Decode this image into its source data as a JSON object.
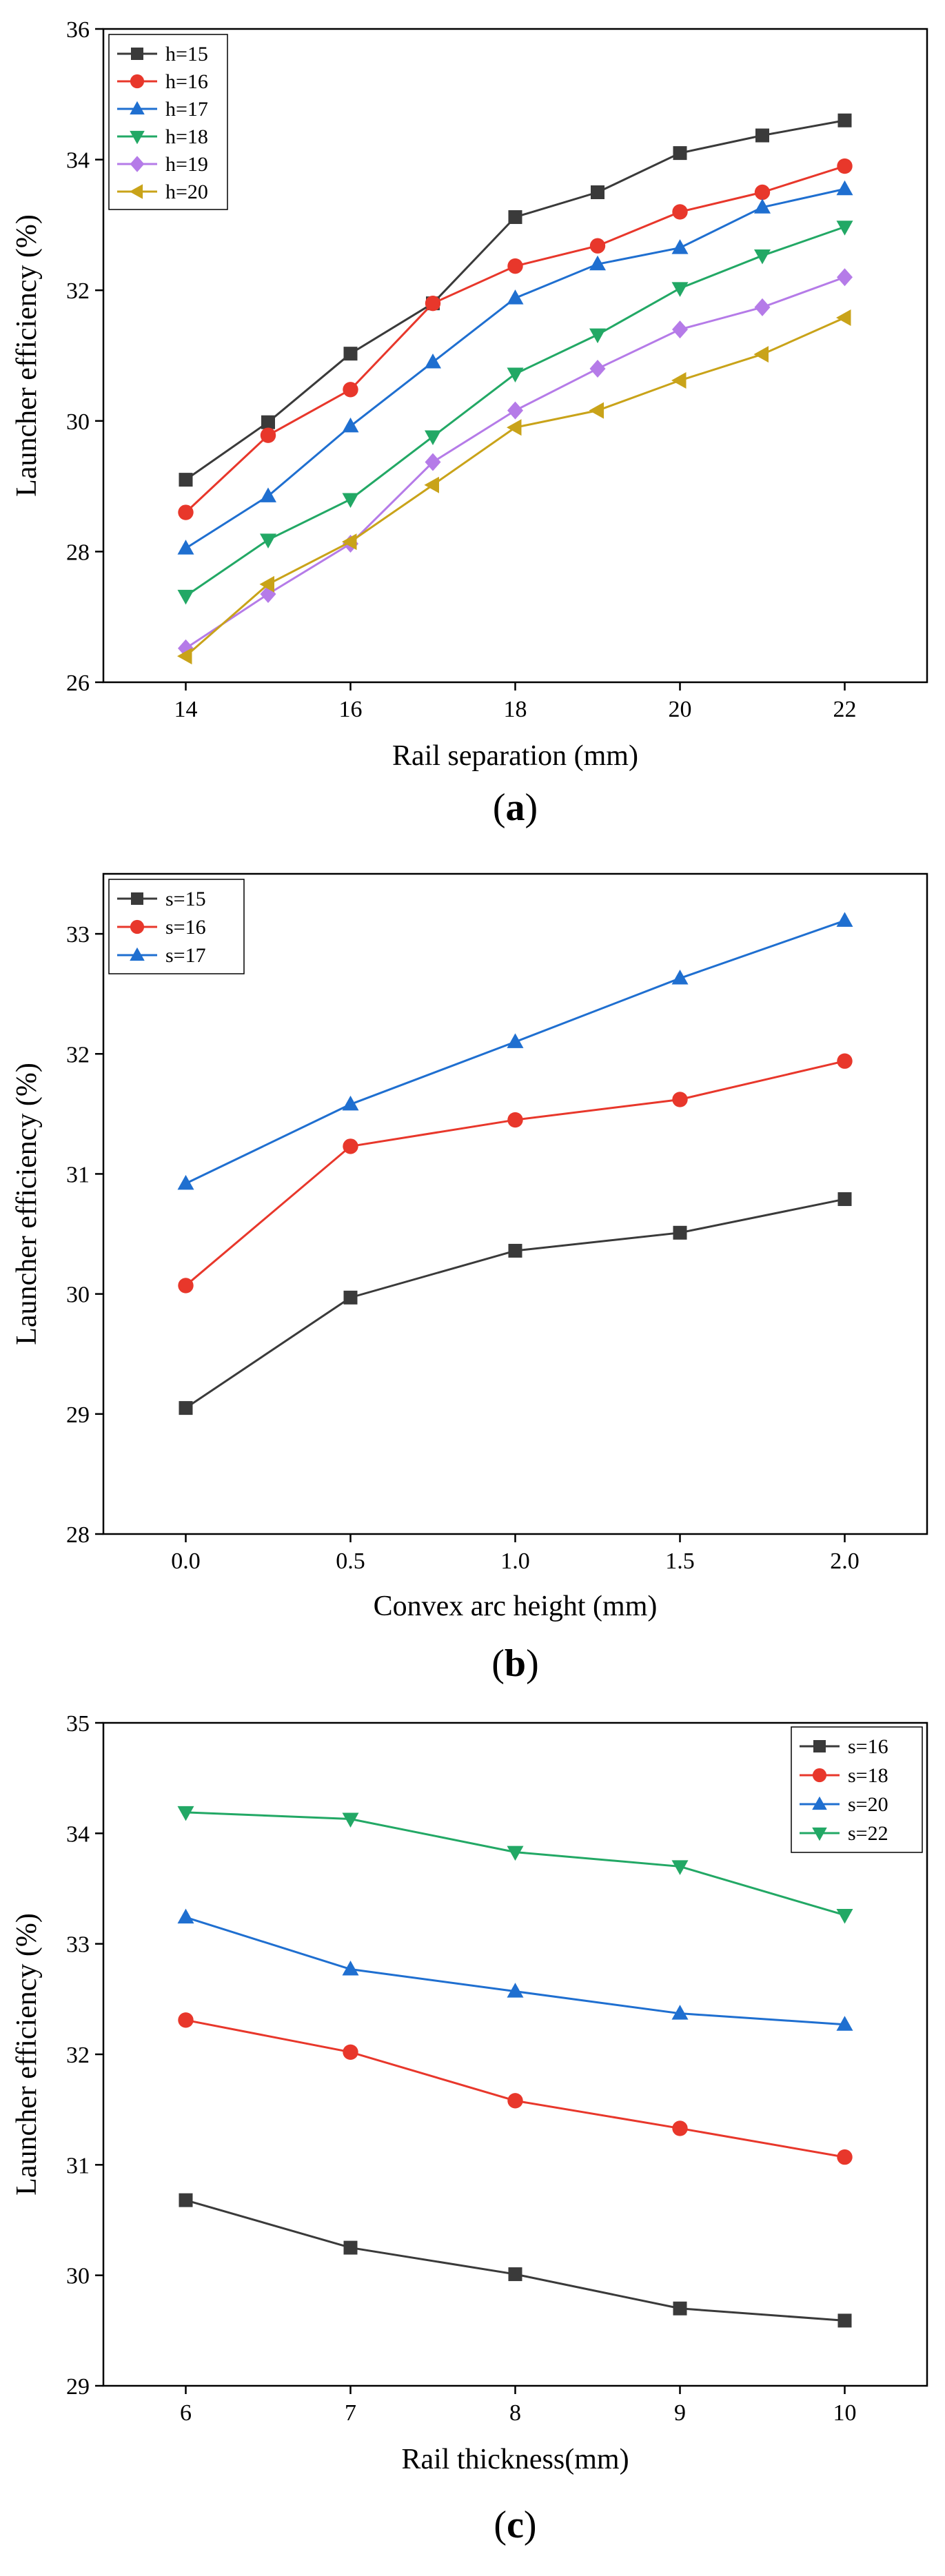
{
  "chart_data": [
    {
      "type": "line",
      "panel_label": "a",
      "title": "",
      "xlabel": "Rail separation (mm)",
      "ylabel": "Launcher efficiency (%)",
      "xlim": [
        13,
        23
      ],
      "ylim": [
        26,
        36
      ],
      "xticks": [
        14,
        16,
        18,
        20,
        22
      ],
      "yticks": [
        26,
        28,
        30,
        32,
        34,
        36
      ],
      "legend_position": "top-left",
      "x": [
        14,
        15,
        16,
        17,
        18,
        19,
        20,
        21,
        22
      ],
      "series": [
        {
          "name": "h=15",
          "color": "#3a3a3a",
          "marker": "square",
          "values": [
            29.1,
            29.98,
            31.03,
            31.8,
            33.12,
            33.5,
            34.1,
            34.37,
            34.6
          ]
        },
        {
          "name": "h=16",
          "color": "#e8372b",
          "marker": "circle",
          "values": [
            28.6,
            29.78,
            30.48,
            31.8,
            32.37,
            32.68,
            33.2,
            33.5,
            33.9
          ]
        },
        {
          "name": "h=17",
          "color": "#1f6fd0",
          "marker": "triangle-up",
          "values": [
            28.05,
            28.85,
            29.92,
            30.9,
            31.88,
            32.4,
            32.65,
            33.27,
            33.55
          ]
        },
        {
          "name": "h=18",
          "color": "#22a865",
          "marker": "triangle-down",
          "values": [
            27.32,
            28.18,
            28.8,
            29.76,
            30.72,
            31.32,
            32.03,
            32.53,
            32.97
          ]
        },
        {
          "name": "h=19",
          "color": "#b57be8",
          "marker": "diamond",
          "values": [
            26.52,
            27.35,
            28.12,
            29.37,
            30.16,
            30.8,
            31.4,
            31.74,
            32.2
          ]
        },
        {
          "name": "h=20",
          "color": "#c9a319",
          "marker": "triangle-left",
          "values": [
            26.4,
            27.5,
            28.15,
            29.02,
            29.9,
            30.16,
            30.62,
            31.02,
            31.58
          ]
        }
      ]
    },
    {
      "type": "line",
      "panel_label": "b",
      "title": "",
      "xlabel": "Convex arc height (mm)",
      "ylabel": "Launcher efficiency (%)",
      "xlim": [
        -0.25,
        2.25
      ],
      "ylim": [
        28,
        33.5
      ],
      "xticks": [
        0.0,
        0.5,
        1.0,
        1.5,
        2.0
      ],
      "xtick_labels": [
        "0.0",
        "0.5",
        "1.0",
        "1.5",
        "2.0"
      ],
      "yticks": [
        28,
        29,
        30,
        31,
        32,
        33
      ],
      "legend_position": "top-left",
      "x": [
        0.0,
        0.5,
        1.0,
        1.5,
        2.0
      ],
      "series": [
        {
          "name": "s=15",
          "color": "#3a3a3a",
          "marker": "square",
          "values": [
            29.05,
            29.97,
            30.36,
            30.51,
            30.79
          ]
        },
        {
          "name": "s=16",
          "color": "#e8372b",
          "marker": "circle",
          "values": [
            30.07,
            31.23,
            31.45,
            31.62,
            31.94
          ]
        },
        {
          "name": "s=17",
          "color": "#1f6fd0",
          "marker": "triangle-up",
          "values": [
            30.92,
            31.58,
            32.1,
            32.63,
            33.11
          ]
        }
      ]
    },
    {
      "type": "line",
      "panel_label": "c",
      "title": "",
      "xlabel": "Rail thickness(mm)",
      "ylabel": "Launcher efficiency (%)",
      "xlim": [
        5.5,
        10.5
      ],
      "ylim": [
        29,
        35
      ],
      "xticks": [
        6,
        7,
        8,
        9,
        10
      ],
      "yticks": [
        29,
        30,
        31,
        32,
        33,
        34,
        35
      ],
      "legend_position": "top-right",
      "x": [
        6,
        7,
        8,
        9,
        10
      ],
      "series": [
        {
          "name": "s=16",
          "color": "#3a3a3a",
          "marker": "square",
          "values": [
            30.68,
            30.25,
            30.01,
            29.7,
            29.59
          ]
        },
        {
          "name": "s=18",
          "color": "#e8372b",
          "marker": "circle",
          "values": [
            32.31,
            32.02,
            31.58,
            31.33,
            31.07
          ]
        },
        {
          "name": "s=20",
          "color": "#1f6fd0",
          "marker": "triangle-up",
          "values": [
            33.24,
            32.77,
            32.57,
            32.37,
            32.27
          ]
        },
        {
          "name": "s=22",
          "color": "#22a865",
          "marker": "triangle-down",
          "values": [
            34.19,
            34.13,
            33.83,
            33.7,
            33.26
          ]
        }
      ]
    }
  ]
}
